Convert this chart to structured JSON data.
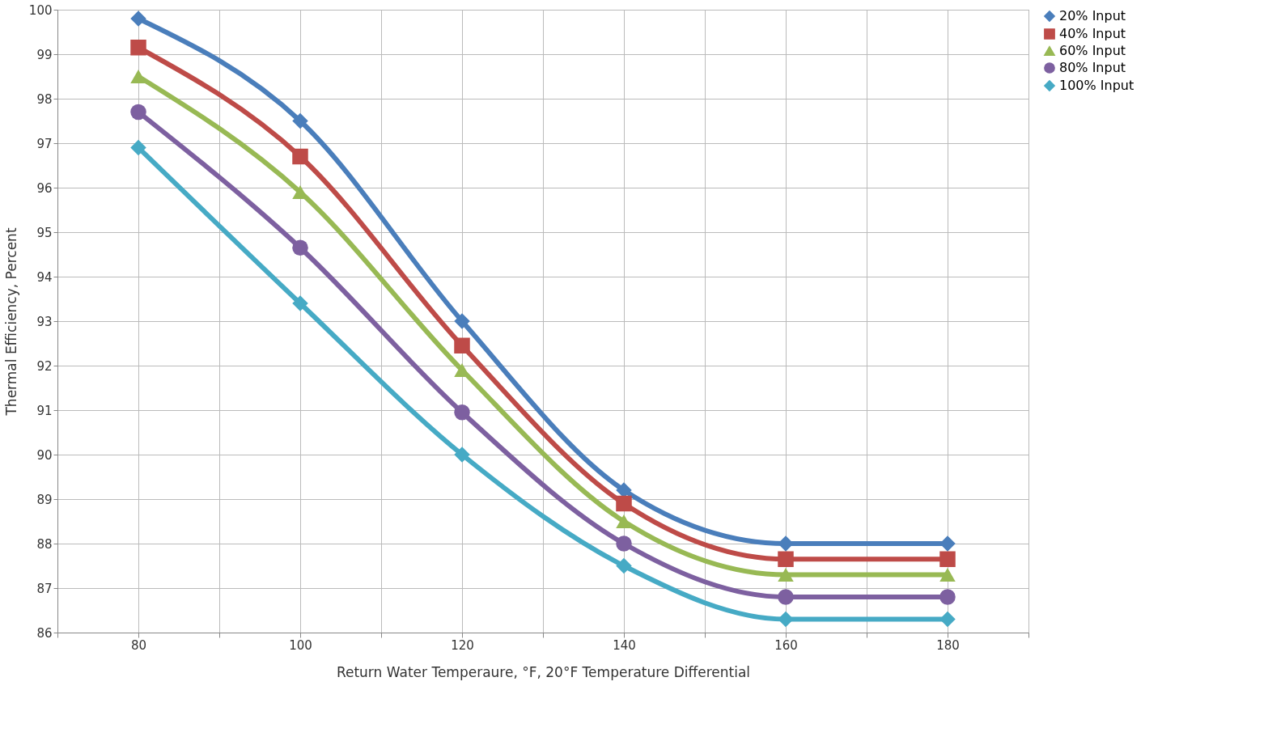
{
  "chart_data": {
    "type": "line",
    "xlabel": "Return Water Temperaure, °F, 20°F Temperature Differential",
    "ylabel": "Thermal Efficiency, Percent",
    "x": [
      80,
      100,
      120,
      140,
      160,
      180
    ],
    "xlim": [
      70,
      190
    ],
    "xticks": [
      {
        "value": 70,
        "label": null
      },
      80,
      {
        "value": 90,
        "label": null
      },
      100,
      {
        "value": 110,
        "label": null
      },
      120,
      {
        "value": 130,
        "label": null
      },
      140,
      {
        "value": 150,
        "label": null
      },
      160,
      {
        "value": 170,
        "label": null
      },
      180,
      {
        "value": 190,
        "label": null
      }
    ],
    "ylim": [
      86,
      100
    ],
    "yticks": [
      86,
      87,
      88,
      89,
      90,
      91,
      92,
      93,
      94,
      95,
      96,
      97,
      98,
      99,
      100
    ],
    "grid": true,
    "legend": "right",
    "series": [
      {
        "name": "20% Input",
        "color": "#4a7ebb",
        "marker": "diamond",
        "values": [
          99.8,
          97.5,
          93.0,
          89.2,
          88.0,
          88.0
        ]
      },
      {
        "name": "40% Input",
        "color": "#be4b48",
        "marker": "square",
        "values": [
          99.15,
          96.7,
          92.45,
          88.9,
          87.65,
          87.65
        ]
      },
      {
        "name": "60% Input",
        "color": "#98b954",
        "marker": "triangle",
        "values": [
          98.5,
          95.9,
          91.9,
          88.5,
          87.3,
          87.3
        ]
      },
      {
        "name": "80% Input",
        "color": "#7d60a0",
        "marker": "circle",
        "values": [
          97.7,
          94.65,
          90.95,
          88.0,
          86.8,
          86.8
        ]
      },
      {
        "name": "100% Input",
        "color": "#46aac5",
        "marker": "diamond",
        "values": [
          96.9,
          93.4,
          90.0,
          87.5,
          86.3,
          86.3
        ]
      }
    ]
  }
}
